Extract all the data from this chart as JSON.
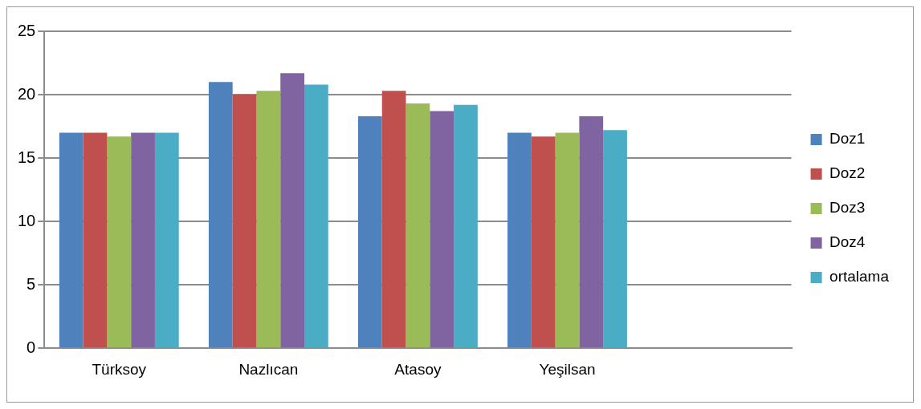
{
  "chart_data": {
    "type": "bar",
    "categories": [
      "Türksoy",
      "Nazlıcan",
      "Atasoy",
      "Yeşilsan",
      null
    ],
    "series": [
      {
        "name": "Doz1",
        "color": "#4f81bd",
        "values": [
          17.0,
          21.0,
          18.3,
          17.0,
          null
        ]
      },
      {
        "name": "Doz2",
        "color": "#c0504d",
        "values": [
          17.0,
          20.0,
          20.3,
          16.7,
          null
        ]
      },
      {
        "name": "Doz3",
        "color": "#9bbb59",
        "values": [
          16.7,
          20.3,
          19.3,
          17.0,
          null
        ]
      },
      {
        "name": "Doz4",
        "color": "#8064a2",
        "values": [
          17.0,
          21.7,
          18.7,
          18.3,
          null
        ]
      },
      {
        "name": "ortalama",
        "color": "#4bacc6",
        "values": [
          17.0,
          20.8,
          19.2,
          17.2,
          null
        ]
      }
    ],
    "ylim": [
      0,
      25
    ],
    "yticks": [
      0,
      5,
      10,
      15,
      20,
      25
    ],
    "grid": "y",
    "legend": "right"
  }
}
